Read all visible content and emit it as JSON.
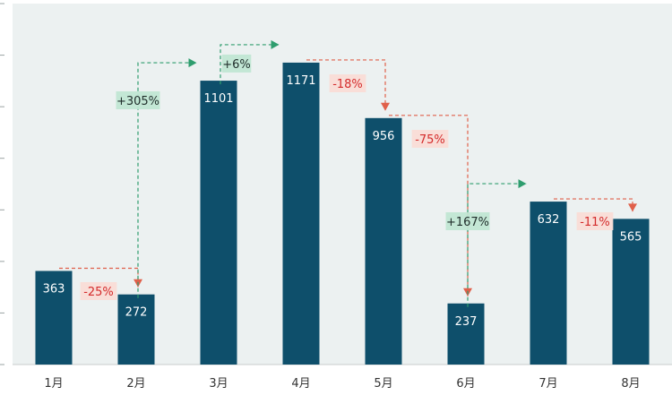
{
  "chart_data": {
    "type": "bar",
    "categories": [
      "1月",
      "2月",
      "3月",
      "4月",
      "5月",
      "6月",
      "7月",
      "8月"
    ],
    "values": [
      363,
      272,
      1101,
      1171,
      956,
      237,
      632,
      565
    ],
    "ylim": [
      0,
      1400
    ],
    "grid": false,
    "changes": [
      {
        "from": 0,
        "to": 1,
        "label": "-25%",
        "direction": "down"
      },
      {
        "from": 1,
        "to": 2,
        "label": "+305%",
        "direction": "up"
      },
      {
        "from": 2,
        "to": 3,
        "label": "+6%",
        "direction": "up"
      },
      {
        "from": 3,
        "to": 4,
        "label": "-18%",
        "direction": "down"
      },
      {
        "from": 4,
        "to": 5,
        "label": "-75%",
        "direction": "down"
      },
      {
        "from": 5,
        "to": 6,
        "label": "+167%",
        "direction": "up"
      },
      {
        "from": 6,
        "to": 7,
        "label": "-11%",
        "direction": "down"
      }
    ],
    "colors": {
      "bar": "#0e4f6b",
      "plot_background": "#ecf1f1",
      "up": "#2e9d6e",
      "up_box": "#bfe6d3",
      "down": "#e0604a",
      "down_box": "#fadcd6",
      "down_text": "#d42b2b",
      "up_text": "#1f2d2a"
    }
  }
}
